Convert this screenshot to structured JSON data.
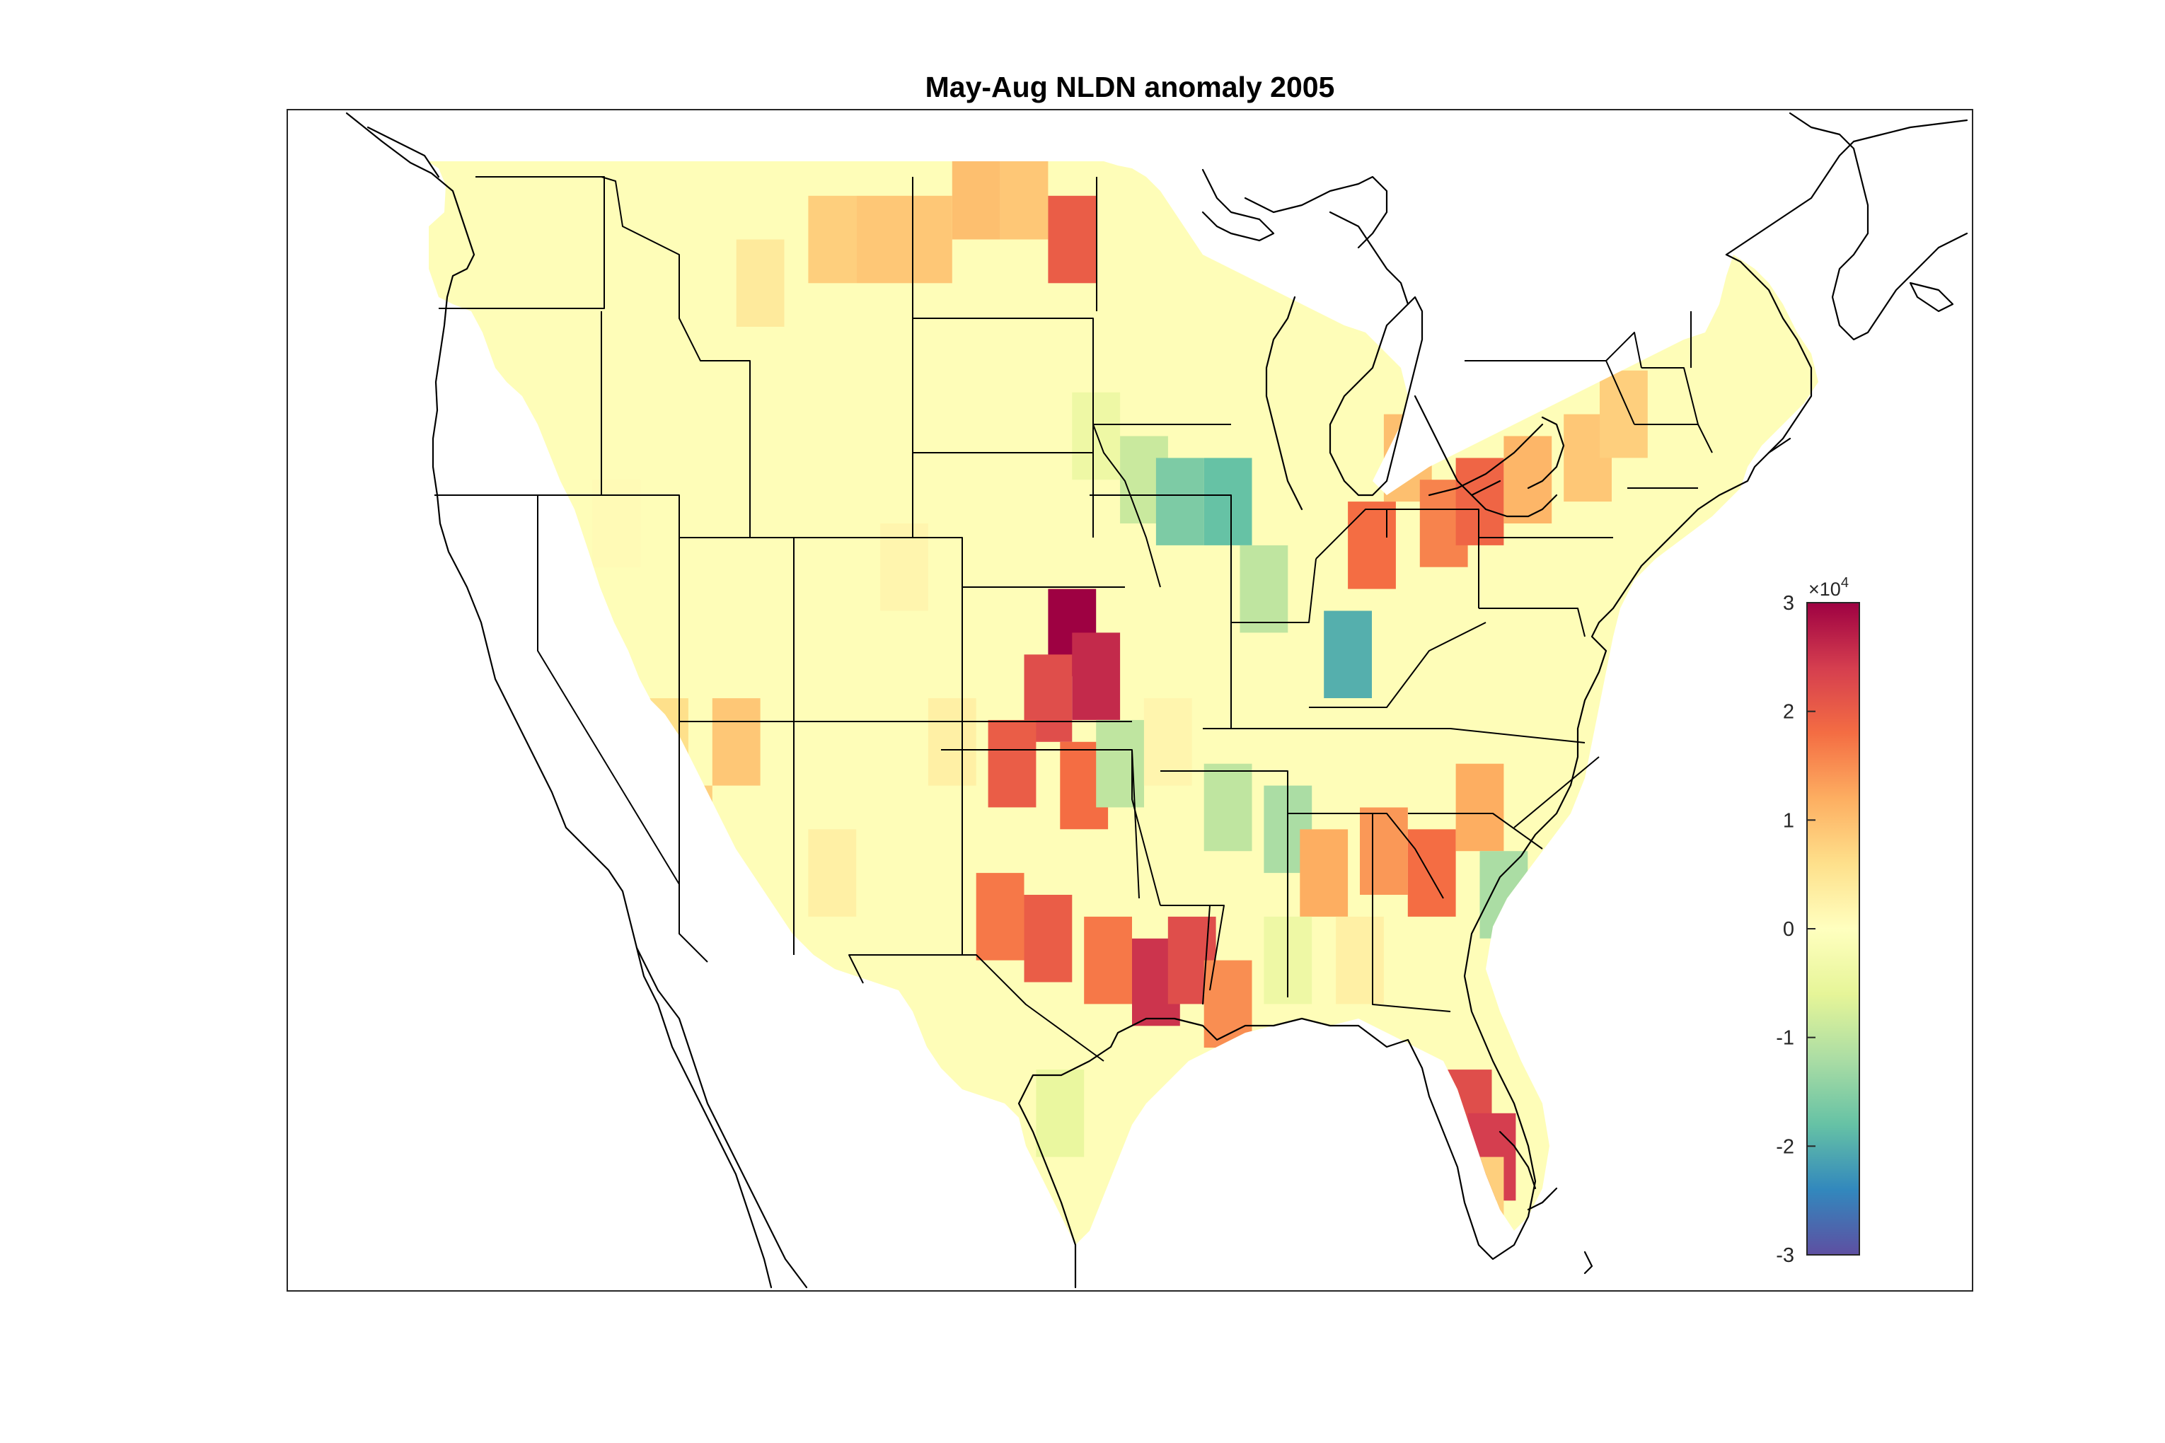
{
  "title": "May-Aug NLDN anomaly 2005",
  "colorbar": {
    "exponent_label": "×10",
    "exponent_power": "4",
    "ticks": [
      "3",
      "2",
      "1",
      "0",
      "-1",
      "-2",
      "-3"
    ],
    "range": [
      -3,
      3
    ],
    "colormap": [
      "#5e4fa2",
      "#3288bd",
      "#66c2a5",
      "#abdda4",
      "#e6f598",
      "#ffffbf",
      "#fee08b",
      "#fdae61",
      "#f46d43",
      "#d53e4f",
      "#9e0142"
    ]
  },
  "chart_data": {
    "type": "heatmap",
    "title": "May-Aug NLDN anomaly 2005",
    "colorbar_range": [
      -3,
      3
    ],
    "colorbar_scale": "x10^4",
    "features": [
      "coastlines",
      "state boundaries"
    ],
    "lon_range": [
      -125,
      -66
    ],
    "lat_range": [
      24,
      49.5
    ],
    "grid_cells": [
      {
        "lon": -117,
        "lat": 41,
        "v": 0.1
      },
      {
        "lon": -114,
        "lat": 34,
        "v": 0.8
      },
      {
        "lon": -115,
        "lat": 36,
        "v": 0.6
      },
      {
        "lon": -112,
        "lat": 36,
        "v": 0.9
      },
      {
        "lon": -111,
        "lat": 46.5,
        "v": 0.4
      },
      {
        "lon": -108,
        "lat": 47.5,
        "v": 0.8
      },
      {
        "lon": -106,
        "lat": 47.5,
        "v": 0.9
      },
      {
        "lon": -104,
        "lat": 47.5,
        "v": 0.9
      },
      {
        "lon": -102,
        "lat": 48.5,
        "v": 1.0
      },
      {
        "lon": -100,
        "lat": 48.5,
        "v": 0.9
      },
      {
        "lon": -98,
        "lat": 47.5,
        "v": 2.0
      },
      {
        "lon": -97,
        "lat": 43,
        "v": -0.4
      },
      {
        "lon": -95,
        "lat": 42,
        "v": -0.9
      },
      {
        "lon": -93.5,
        "lat": 41.5,
        "v": -1.6
      },
      {
        "lon": -91.5,
        "lat": 41.5,
        "v": -1.8
      },
      {
        "lon": -90,
        "lat": 39.5,
        "v": -1.0
      },
      {
        "lon": -86.5,
        "lat": 38,
        "v": -2.0
      },
      {
        "lon": -85.5,
        "lat": 40.5,
        "v": 1.8
      },
      {
        "lon": -84,
        "lat": 42.5,
        "v": 1.0
      },
      {
        "lon": -82.5,
        "lat": 41,
        "v": 1.6
      },
      {
        "lon": -81,
        "lat": 41.5,
        "v": 1.9
      },
      {
        "lon": -79,
        "lat": 42,
        "v": 1.1
      },
      {
        "lon": -76.5,
        "lat": 42.5,
        "v": 0.9
      },
      {
        "lon": -75,
        "lat": 43.5,
        "v": 0.8
      },
      {
        "lon": -98,
        "lat": 38.5,
        "v": 3.0
      },
      {
        "lon": -97,
        "lat": 37.5,
        "v": 2.6
      },
      {
        "lon": -99,
        "lat": 37,
        "v": 2.2
      },
      {
        "lon": -100.5,
        "lat": 35.5,
        "v": 2.0
      },
      {
        "lon": -97.5,
        "lat": 35,
        "v": 1.8
      },
      {
        "lon": -96,
        "lat": 35.5,
        "v": -1.0
      },
      {
        "lon": -94,
        "lat": 36,
        "v": 0.2
      },
      {
        "lon": -91.5,
        "lat": 34.5,
        "v": -1.0
      },
      {
        "lon": -89,
        "lat": 34,
        "v": -1.2
      },
      {
        "lon": -87.5,
        "lat": 33,
        "v": 1.2
      },
      {
        "lon": -85,
        "lat": 33.5,
        "v": 1.4
      },
      {
        "lon": -83,
        "lat": 33,
        "v": 1.8
      },
      {
        "lon": -81,
        "lat": 34.5,
        "v": 1.2
      },
      {
        "lon": -80,
        "lat": 32.5,
        "v": -1.2
      },
      {
        "lon": -101,
        "lat": 32,
        "v": 1.7
      },
      {
        "lon": -99,
        "lat": 31.5,
        "v": 2.0
      },
      {
        "lon": -96.5,
        "lat": 31,
        "v": 1.7
      },
      {
        "lon": -94.5,
        "lat": 30.5,
        "v": 2.5
      },
      {
        "lon": -93,
        "lat": 31,
        "v": 2.2
      },
      {
        "lon": -91.5,
        "lat": 30,
        "v": 1.5
      },
      {
        "lon": -89,
        "lat": 31,
        "v": -0.4
      },
      {
        "lon": -86,
        "lat": 31,
        "v": 0.3
      },
      {
        "lon": -98.5,
        "lat": 27.5,
        "v": -0.5
      },
      {
        "lon": -81.5,
        "lat": 27.5,
        "v": 2.2
      },
      {
        "lon": -80.5,
        "lat": 26.5,
        "v": 2.4
      },
      {
        "lon": -81,
        "lat": 25.5,
        "v": 0.8
      },
      {
        "lon": -105,
        "lat": 40,
        "v": 0.2
      },
      {
        "lon": -103,
        "lat": 36,
        "v": 0.3
      },
      {
        "lon": -108,
        "lat": 33,
        "v": 0.3
      }
    ]
  }
}
